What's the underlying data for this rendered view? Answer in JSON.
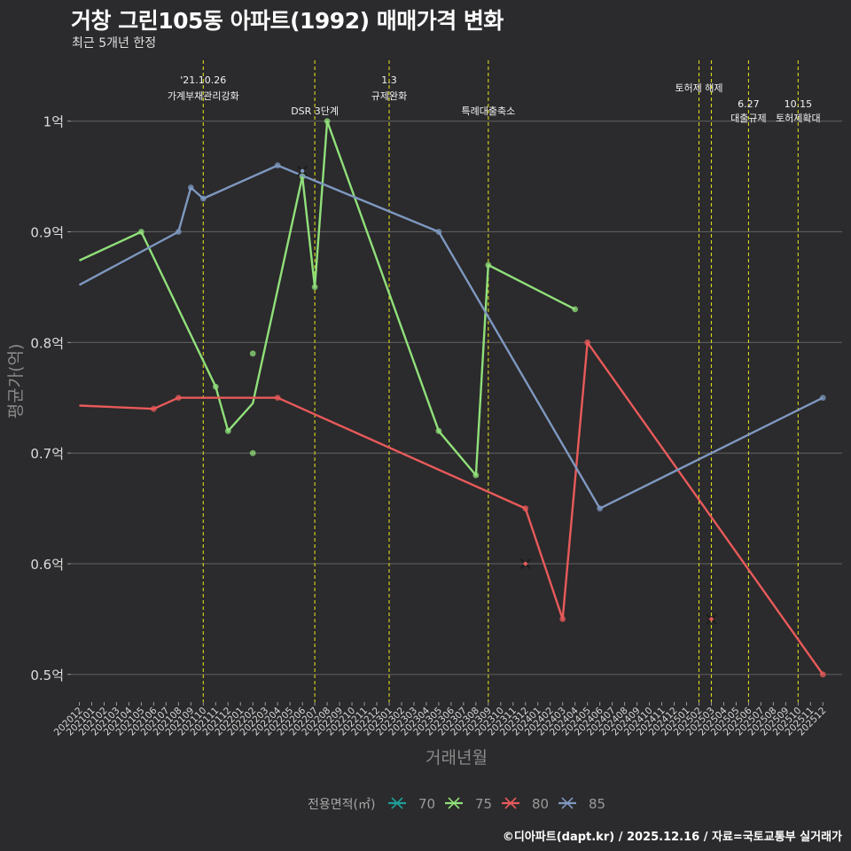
{
  "title": "거창 그린105동 아파트(1992) 매매가격 변화",
  "subtitle": "최근 5개년 한정",
  "caption": "©디아파트(dapt.kr) / 2025.12.16 / 자료=국토교통부 실거래가",
  "colors": {
    "background": "#2b2a2c",
    "grid": "#5c5c5c",
    "event_line": "#d8d81e",
    "s70": "#1f9e9a",
    "s75": "#90e07a",
    "s80": "#e85a5a",
    "s85": "#7e98c0"
  },
  "chart_data": {
    "type": "line",
    "xlabel": "거래년월",
    "ylabel": "평균가(억)",
    "x_ticks": [
      "202012",
      "202101",
      "202102",
      "202103",
      "202104",
      "202105",
      "202106",
      "202107",
      "202108",
      "202109",
      "202110",
      "202111",
      "202112",
      "202201",
      "202202",
      "202203",
      "202204",
      "202205",
      "202206",
      "202207",
      "202208",
      "202209",
      "202210",
      "202211",
      "202212",
      "202301",
      "202302",
      "202303",
      "202304",
      "202305",
      "202306",
      "202307",
      "202308",
      "202309",
      "202310",
      "202311",
      "202312",
      "202401",
      "202402",
      "202403",
      "202404",
      "202405",
      "202406",
      "202407",
      "202408",
      "202409",
      "202410",
      "202411",
      "202412",
      "202501",
      "202502",
      "202503",
      "202504",
      "202505",
      "202506",
      "202507",
      "202508",
      "202509",
      "202510",
      "202511",
      "202512"
    ],
    "y_ticks": [
      {
        "value": 0.5,
        "label": "0.5억"
      },
      {
        "value": 0.6,
        "label": "0.6억"
      },
      {
        "value": 0.7,
        "label": "0.7억"
      },
      {
        "value": 0.8,
        "label": "0.8억"
      },
      {
        "value": 0.9,
        "label": "0.9억"
      },
      {
        "value": 1.0,
        "label": "1억"
      }
    ],
    "ylim": [
      0.475,
      1.055
    ],
    "legend_title": "전용면적(㎡)",
    "legend_position": "bottom",
    "events": [
      {
        "x": 10.0,
        "lines": [
          "'21.10.26",
          "가계부채관리강화"
        ],
        "row": 0
      },
      {
        "x": 19.0,
        "lines": [
          "DSR 3단계"
        ],
        "row": 2
      },
      {
        "x": 25.0,
        "lines": [
          "1.3",
          "규제완화"
        ],
        "row": 0
      },
      {
        "x": 33.0,
        "lines": [
          "특례대출축소"
        ],
        "row": 2
      },
      {
        "x": 50.0,
        "lines": [
          "토허제 해제"
        ],
        "row": 1
      },
      {
        "x": 51.0,
        "lines": [],
        "row": 1
      },
      {
        "x": 54.0,
        "lines": [
          "6.27",
          "대출규제"
        ],
        "row": 3
      },
      {
        "x": 58.0,
        "lines": [
          "10.15",
          "토허제확대"
        ],
        "row": 3
      }
    ],
    "series": [
      {
        "name": "70",
        "color": "#1f9e9a",
        "line": [],
        "points": [],
        "crosses": []
      },
      {
        "name": "75",
        "color": "#90e07a",
        "line": [
          [
            0,
            0.874
          ],
          [
            5,
            0.9
          ],
          [
            11,
            0.76
          ],
          [
            12,
            0.72
          ],
          [
            14,
            0.745
          ],
          [
            18,
            0.95
          ],
          [
            19,
            0.85
          ],
          [
            20,
            1.0
          ],
          [
            29,
            0.72
          ],
          [
            32,
            0.68
          ],
          [
            33,
            0.87
          ],
          [
            40,
            0.83
          ]
        ],
        "points": [
          [
            5,
            0.9
          ],
          [
            11,
            0.76
          ],
          [
            12,
            0.72
          ],
          [
            14,
            0.79
          ],
          [
            14,
            0.7
          ],
          [
            18,
            0.95
          ],
          [
            19,
            0.85
          ],
          [
            20,
            1.0
          ],
          [
            29,
            0.72
          ],
          [
            32,
            0.68
          ],
          [
            33,
            0.87
          ],
          [
            40,
            0.83
          ]
        ],
        "crosses": []
      },
      {
        "name": "80",
        "color": "#e85a5a",
        "line": [
          [
            0,
            0.743
          ],
          [
            6,
            0.74
          ],
          [
            8,
            0.75
          ],
          [
            16,
            0.75
          ],
          [
            36,
            0.65
          ],
          [
            39,
            0.55
          ],
          [
            41,
            0.8
          ],
          [
            60,
            0.5
          ]
        ],
        "points": [
          [
            6,
            0.74
          ],
          [
            8,
            0.75
          ],
          [
            16,
            0.75
          ],
          [
            36,
            0.65
          ],
          [
            39,
            0.55
          ],
          [
            41,
            0.8
          ],
          [
            60,
            0.5
          ]
        ],
        "crosses": [
          [
            36,
            0.6
          ],
          [
            51,
            0.55
          ]
        ]
      },
      {
        "name": "85",
        "color": "#7e98c0",
        "line": [
          [
            0,
            0.852
          ],
          [
            8,
            0.9
          ],
          [
            9,
            0.94
          ],
          [
            10,
            0.93
          ],
          [
            16,
            0.96
          ],
          [
            29,
            0.9
          ],
          [
            42,
            0.65
          ],
          [
            60,
            0.75
          ]
        ],
        "points": [
          [
            8,
            0.9
          ],
          [
            9,
            0.94
          ],
          [
            10,
            0.93
          ],
          [
            16,
            0.96
          ],
          [
            29,
            0.9
          ],
          [
            42,
            0.65
          ],
          [
            60,
            0.75
          ]
        ],
        "crosses": [
          [
            18,
            0.955
          ]
        ]
      }
    ]
  }
}
